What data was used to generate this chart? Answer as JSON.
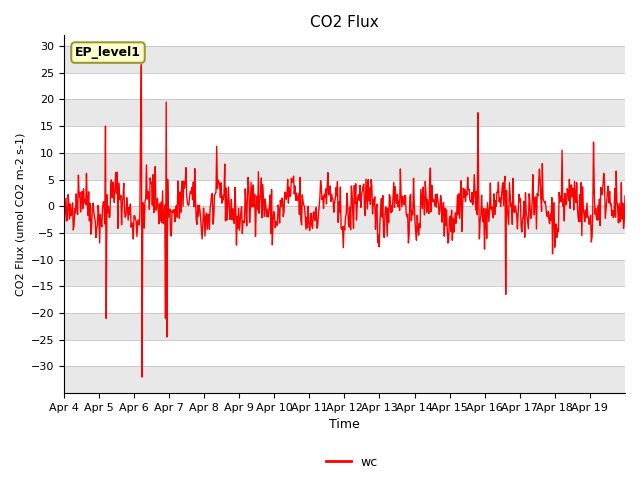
{
  "title": "CO2 Flux",
  "xlabel": "Time",
  "ylabel": "CO2 Flux (umol CO2 m-2 s-1)",
  "ylim": [
    -35,
    32
  ],
  "yticks": [
    -35,
    -30,
    -25,
    -20,
    -15,
    -10,
    -5,
    0,
    5,
    10,
    15,
    20,
    25,
    30
  ],
  "line_color": "#ff0000",
  "line_width": 1.0,
  "background_color": "#ffffff",
  "band_colors": [
    "#e8e8e8",
    "#ffffff"
  ],
  "legend_label": "wc",
  "annotation_label": "EP_level1",
  "annotation_box_color": "#ffffcc",
  "annotation_box_edge": "#999933",
  "x_tick_labels": [
    "Apr 4",
    "Apr 5",
    "Apr 6",
    "Apr 7",
    "Apr 8",
    "Apr 9",
    "Apr 10",
    "Apr 11",
    "Apr 12",
    "Apr 13",
    "Apr 14",
    "Apr 15",
    "Apr 16",
    "Apr 17",
    "Apr 18",
    "Apr 19"
  ],
  "x_tick_positions": [
    0,
    1,
    2,
    3,
    4,
    5,
    6,
    7,
    8,
    9,
    10,
    11,
    12,
    13,
    14,
    15
  ],
  "num_days": 16,
  "seed": 42
}
